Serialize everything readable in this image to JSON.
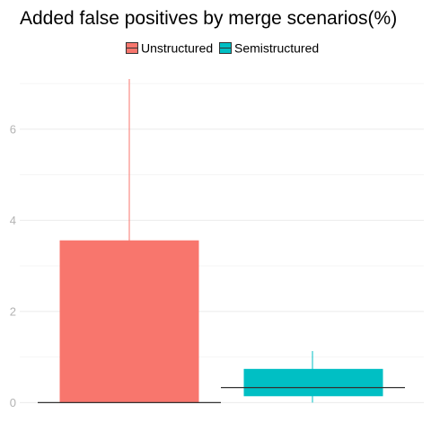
{
  "chart_data": {
    "type": "boxplot",
    "title": "Added false positives by merge scenarios(%)",
    "xlabel": "",
    "ylabel": "",
    "ylim": [
      -0.15,
      7.1
    ],
    "y_ticks": [
      0,
      2,
      4,
      6
    ],
    "grid": true,
    "legend_position": "top",
    "series": [
      {
        "name": "Unstructured",
        "color": "#F8766D",
        "min": 0,
        "q1": 0,
        "median": 0,
        "q3": 3.55,
        "max": 7.1
      },
      {
        "name": "Semistructured",
        "color": "#00BFC4",
        "min": 0,
        "q1": 0.15,
        "median": 0.33,
        "q3": 0.73,
        "max": 1.13
      }
    ]
  }
}
